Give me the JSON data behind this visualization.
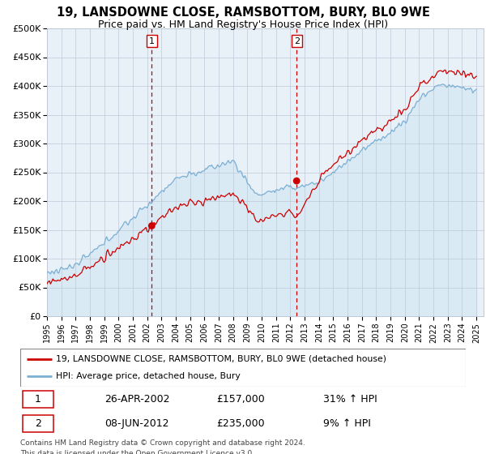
{
  "title": "19, LANSDOWNE CLOSE, RAMSBOTTOM, BURY, BL0 9WE",
  "subtitle": "Price paid vs. HM Land Registry's House Price Index (HPI)",
  "ylabel_ticks": [
    "£0",
    "£50K",
    "£100K",
    "£150K",
    "£200K",
    "£250K",
    "£300K",
    "£350K",
    "£400K",
    "£450K",
    "£500K"
  ],
  "ytick_values": [
    0,
    50000,
    100000,
    150000,
    200000,
    250000,
    300000,
    350000,
    400000,
    450000,
    500000
  ],
  "ylim": [
    0,
    500000
  ],
  "xlim_start": 1995.0,
  "xlim_end": 2025.5,
  "sale1_year": 2002.32,
  "sale1_price": 157000,
  "sale1_label": "1",
  "sale2_year": 2012.44,
  "sale2_price": 235000,
  "sale2_label": "2",
  "legend_line1": "19, LANSDOWNE CLOSE, RAMSBOTTOM, BURY, BL0 9WE (detached house)",
  "legend_line2": "HPI: Average price, detached house, Bury",
  "table_row1": [
    "1",
    "26-APR-2002",
    "£157,000",
    "31% ↑ HPI"
  ],
  "table_row2": [
    "2",
    "08-JUN-2012",
    "£235,000",
    "9% ↑ HPI"
  ],
  "footer1": "Contains HM Land Registry data © Crown copyright and database right 2024.",
  "footer2": "This data is licensed under the Open Government Licence v3.0.",
  "line_color_red": "#cc0000",
  "line_color_blue": "#7bafd4",
  "fill_color_blue": "#daeaf5",
  "background_color": "#e8f0f8",
  "vline_color": "#cc0000",
  "title_fontsize": 10.5,
  "subtitle_fontsize": 9,
  "axis_fontsize": 8
}
